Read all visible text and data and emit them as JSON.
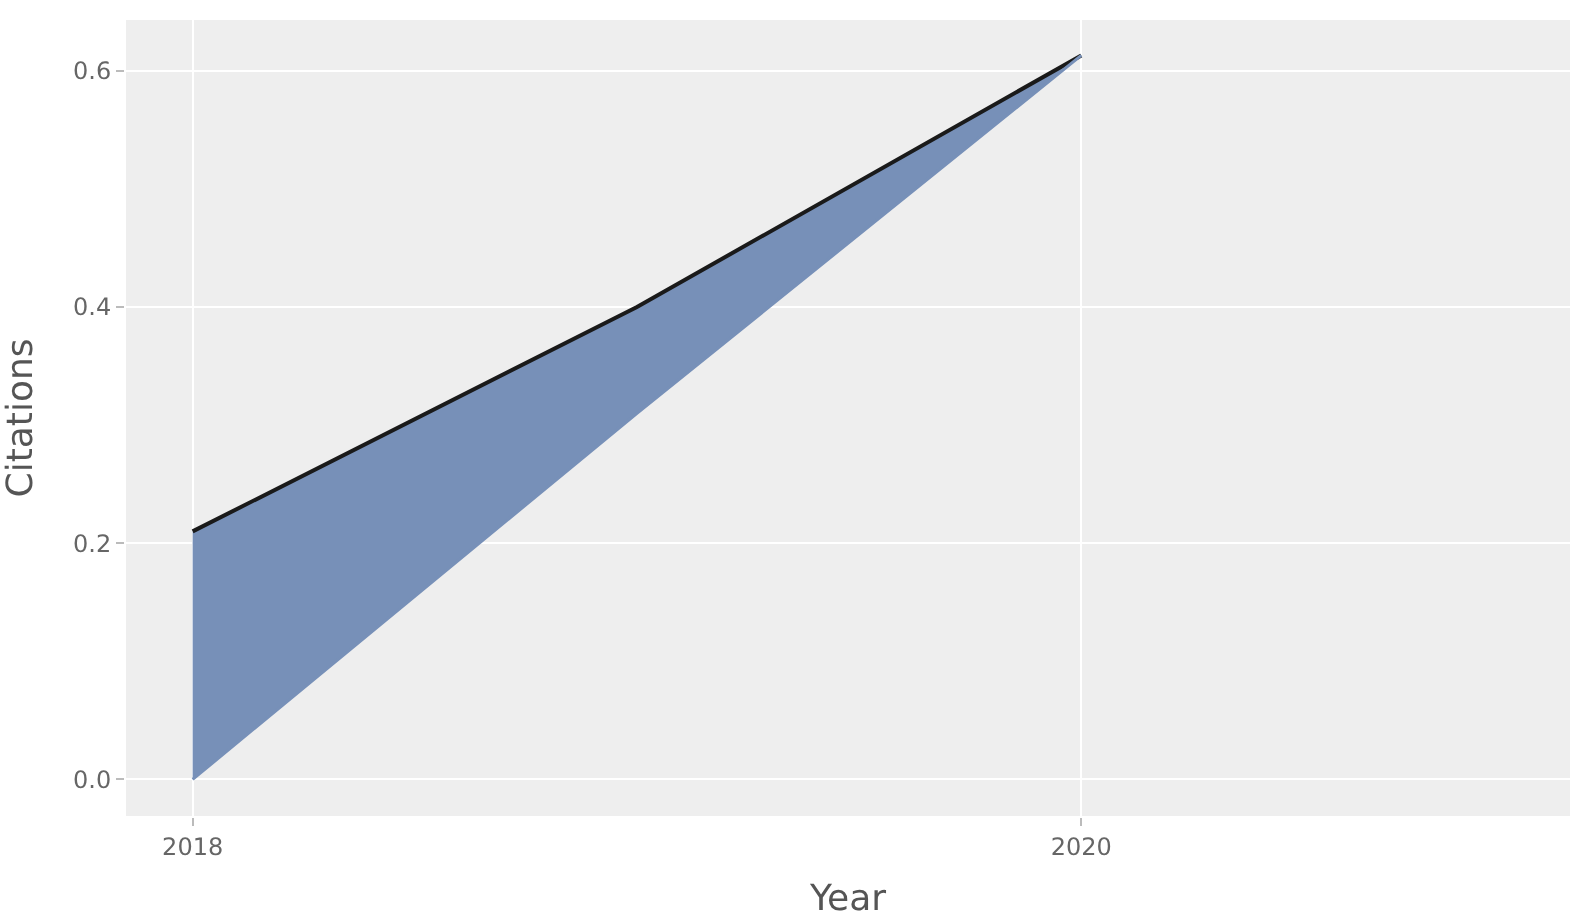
{
  "chart_data": {
    "type": "area",
    "xlabel": "Year",
    "ylabel": "Citations",
    "x": [
      2018,
      2019,
      2020
    ],
    "series": [
      {
        "type": "line",
        "color": "#1a1a1a",
        "values": [
          0.21,
          0.4,
          0.613
        ]
      },
      {
        "color": "#7790b8",
        "values": [
          0,
          0.31,
          0.613
        ]
      }
    ],
    "xlim": [
      2017.85,
      2021.1
    ],
    "xticks": [
      2018,
      2020
    ],
    "ylim": [
      -0.031,
      0.643
    ],
    "yticks": [
      {
        "value": 0,
        "label": "0.0"
      },
      {
        "value": 0.2,
        "label": "0.2"
      },
      {
        "value": 0.4,
        "label": "0.4"
      },
      {
        "value": 0.6,
        "label": "0.6"
      }
    ],
    "grid": true,
    "line_style": "solid",
    "marker": "none"
  }
}
